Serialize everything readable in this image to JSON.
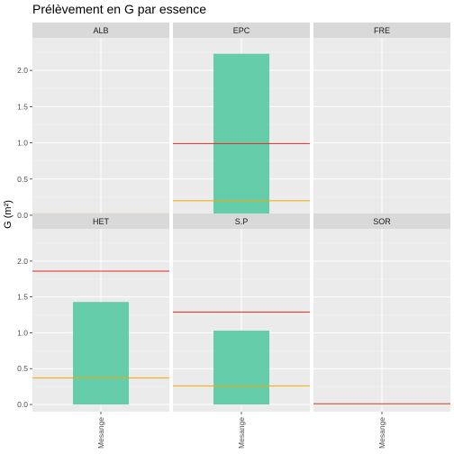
{
  "chart_data": {
    "type": "bar",
    "title": "Prélèvement en G par essence",
    "ylabel": "G (m²)",
    "xlabel": "",
    "ylim": [
      -0.1,
      2.45
    ],
    "yticks": [
      0.0,
      0.5,
      1.0,
      1.5,
      2.0
    ],
    "ytick_labels": [
      "0.0",
      "0.5",
      "1.0",
      "1.5",
      "2.0"
    ],
    "categories": [
      "Mesange"
    ],
    "facet_layout": {
      "rows": 2,
      "cols": 3
    },
    "grid": true,
    "colors": {
      "bar": "#66cdaa",
      "red_line": "#e8261a",
      "orange_line": "#f2a900",
      "panel_bg": "#ebebeb",
      "strip_bg": "#d9d9d9",
      "grid_major": "#ffffff"
    },
    "facets": [
      {
        "name": "ALB",
        "bar_value": 0.0,
        "red_line": 0.01,
        "orange_line": 0.02
      },
      {
        "name": "EPC",
        "bar_value": 2.23,
        "red_line": 0.99,
        "orange_line": 0.2
      },
      {
        "name": "FRE",
        "bar_value": 0.0,
        "red_line": 0.0,
        "orange_line": null
      },
      {
        "name": "HET",
        "bar_value": 1.43,
        "red_line": 1.86,
        "orange_line": 0.37
      },
      {
        "name": "S.P",
        "bar_value": 1.03,
        "red_line": 1.29,
        "orange_line": 0.26
      },
      {
        "name": "SOR",
        "bar_value": 0.0,
        "red_line": 0.01,
        "orange_line": null
      }
    ]
  }
}
